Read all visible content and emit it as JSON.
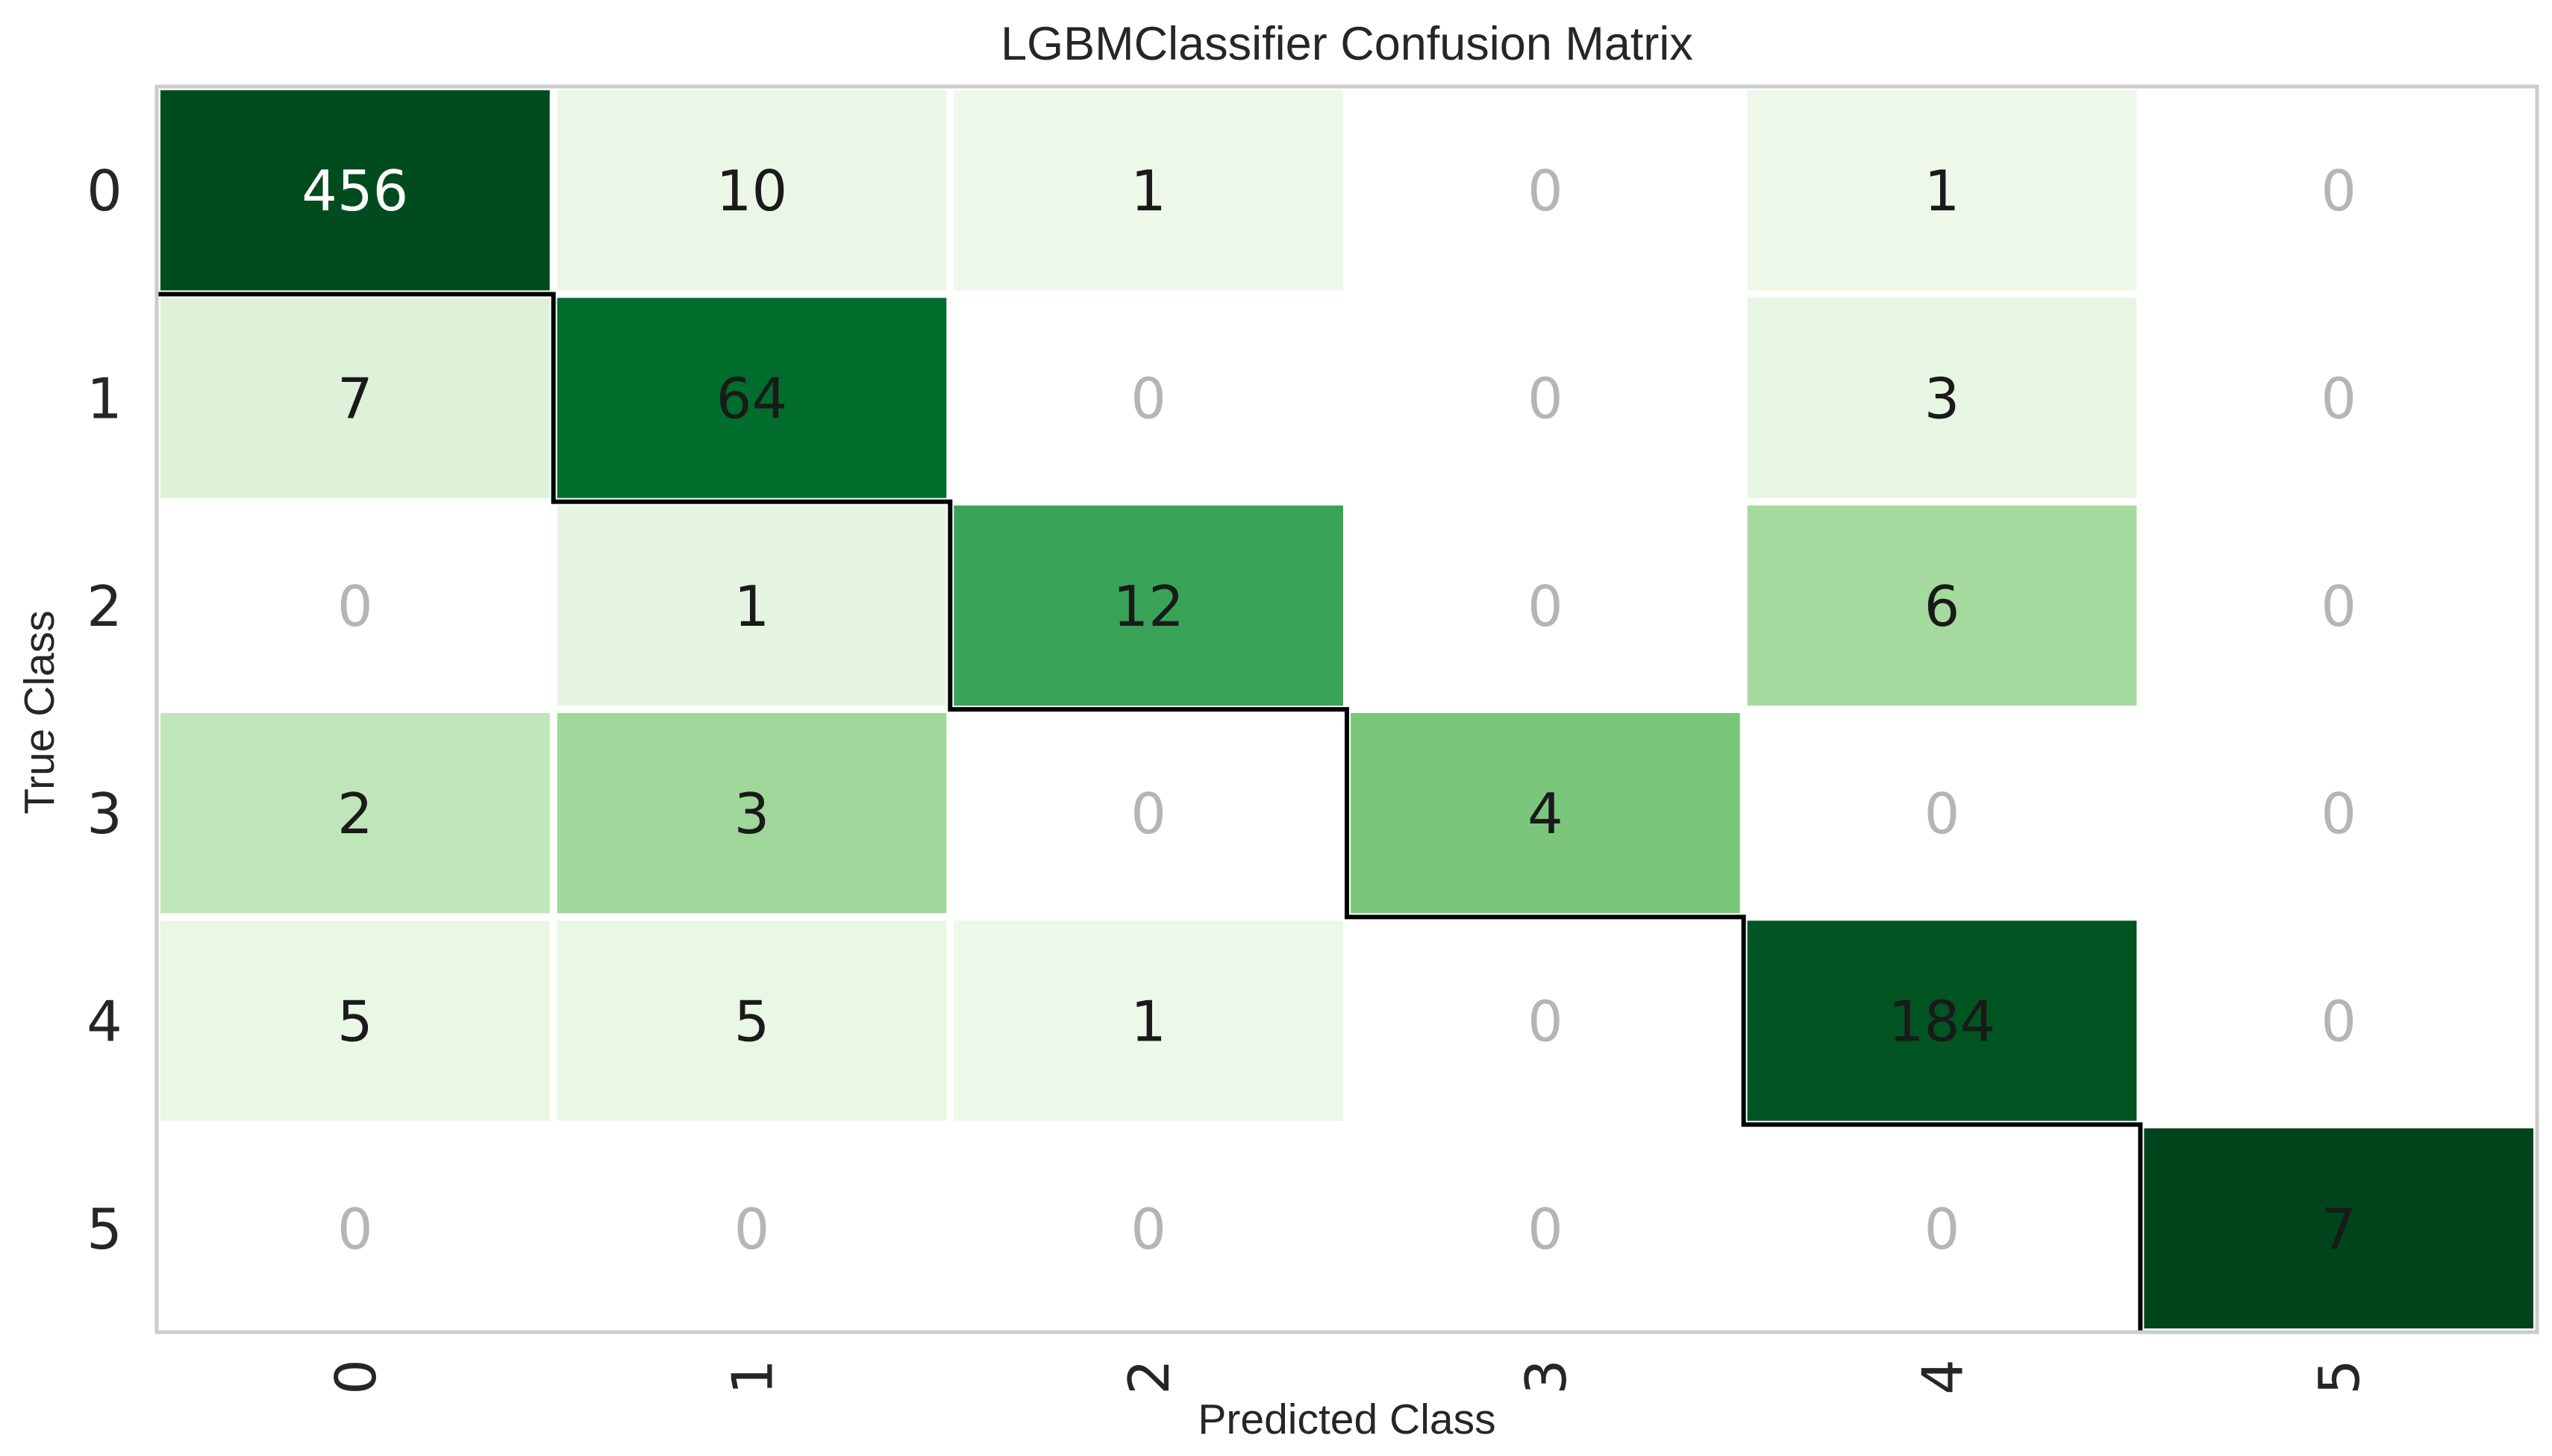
{
  "chart_data": {
    "type": "heatmap",
    "title": "LGBMClassifier Confusion Matrix",
    "xlabel": "Predicted Class",
    "ylabel": "True Class",
    "x_tick_labels": [
      "0",
      "1",
      "2",
      "3",
      "4",
      "5"
    ],
    "y_tick_labels": [
      "0",
      "1",
      "2",
      "3",
      "4",
      "5"
    ],
    "matrix": [
      [
        456,
        10,
        1,
        0,
        1,
        0
      ],
      [
        7,
        64,
        0,
        0,
        3,
        0
      ],
      [
        0,
        1,
        12,
        0,
        6,
        0
      ],
      [
        2,
        3,
        0,
        4,
        0,
        0
      ],
      [
        5,
        5,
        1,
        0,
        184,
        0
      ],
      [
        0,
        0,
        0,
        0,
        0,
        7
      ]
    ],
    "colormap": "Greens",
    "colors": {
      "zero_text": "#b5b5b5",
      "dark_text": "#1a1a1a",
      "light_text": "#ffffff",
      "diagonal_line": "#000000",
      "border": "#cccccc"
    }
  }
}
